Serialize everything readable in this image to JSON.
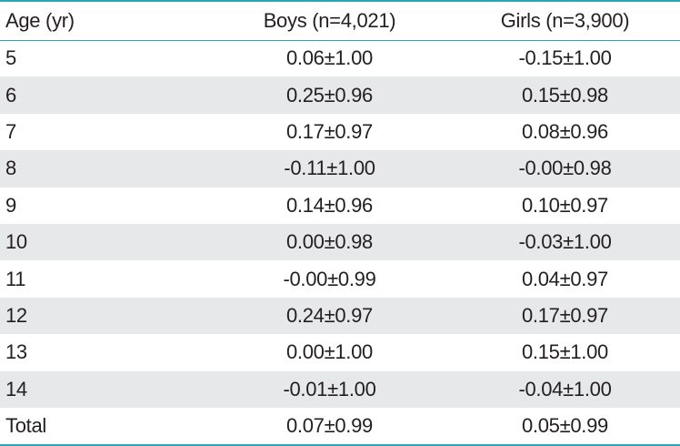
{
  "table": {
    "headers": {
      "age": "Age (yr)",
      "boys": "Boys (n=4,021)",
      "girls": "Girls (n=3,900)"
    },
    "rows": [
      {
        "age": "5",
        "boys": "0.06±1.00",
        "girls": "-0.15±1.00"
      },
      {
        "age": "6",
        "boys": "0.25±0.96",
        "girls": "0.15±0.98"
      },
      {
        "age": "7",
        "boys": "0.17±0.97",
        "girls": "0.08±0.96"
      },
      {
        "age": "8",
        "boys": "-0.11±1.00",
        "girls": "-0.00±0.98"
      },
      {
        "age": "9",
        "boys": "0.14±0.96",
        "girls": "0.10±0.97"
      },
      {
        "age": "10",
        "boys": "0.00±0.98",
        "girls": "-0.03±1.00"
      },
      {
        "age": "11",
        "boys": "-0.00±0.99",
        "girls": "0.04±0.97"
      },
      {
        "age": "12",
        "boys": "0.24±0.97",
        "girls": "0.17±0.97"
      },
      {
        "age": "13",
        "boys": "0.00±1.00",
        "girls": "0.15±1.00"
      },
      {
        "age": "14",
        "boys": "-0.01±1.00",
        "girls": "-0.04±1.00"
      },
      {
        "age": "Total",
        "boys": "0.07±0.99",
        "girls": "0.05±0.99"
      }
    ]
  },
  "colors": {
    "rule": "#2aa6b5",
    "stripe": "#e7e8e9",
    "text": "#231f20"
  }
}
